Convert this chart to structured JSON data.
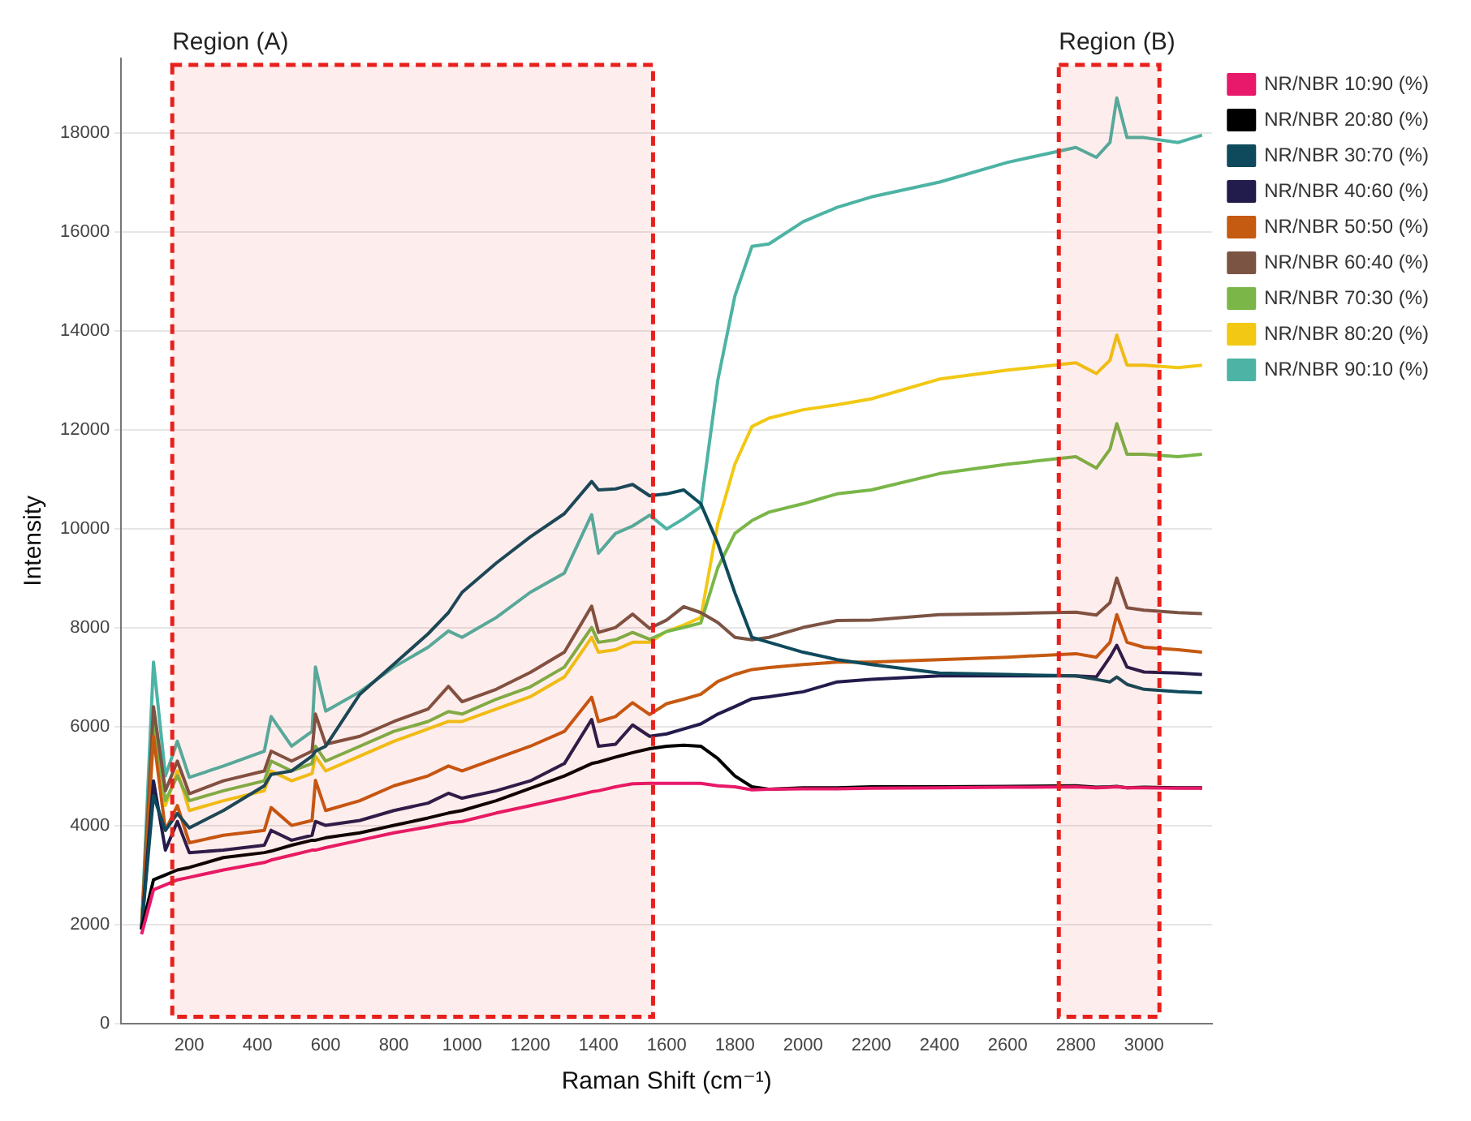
{
  "chart_data": {
    "type": "line",
    "xlabel": "Raman Shift (cm⁻¹)",
    "ylabel": "Intensity",
    "x": [
      60,
      95,
      130,
      165,
      200,
      300,
      420,
      440,
      500,
      560,
      570,
      600,
      700,
      800,
      900,
      960,
      1000,
      1100,
      1200,
      1300,
      1380,
      1400,
      1450,
      1500,
      1550,
      1600,
      1650,
      1700,
      1750,
      1800,
      1850,
      1900,
      2000,
      2100,
      2200,
      2400,
      2600,
      2800,
      2860,
      2900,
      2920,
      2950,
      3000,
      3100,
      3170
    ],
    "series": [
      {
        "name": "NR/NBR 10:90 (%)",
        "color": "#e8196a",
        "values": [
          1800,
          2700,
          2800,
          2900,
          2950,
          3100,
          3250,
          3300,
          3400,
          3500,
          3500,
          3550,
          3700,
          3850,
          3970,
          4050,
          4080,
          4250,
          4400,
          4550,
          4680,
          4700,
          4780,
          4840,
          4850,
          4850,
          4850,
          4850,
          4800,
          4780,
          4720,
          4730,
          4740,
          4740,
          4750,
          4760,
          4770,
          4780,
          4760,
          4770,
          4780,
          4760,
          4760,
          4750,
          4750
        ]
      },
      {
        "name": "NR/NBR 20:80 (%)",
        "color": "#000000",
        "values": [
          1900,
          2900,
          3000,
          3100,
          3150,
          3350,
          3450,
          3480,
          3600,
          3700,
          3700,
          3750,
          3850,
          4000,
          4150,
          4250,
          4300,
          4500,
          4750,
          5000,
          5250,
          5280,
          5380,
          5470,
          5550,
          5600,
          5620,
          5600,
          5350,
          5000,
          4780,
          4730,
          4760,
          4760,
          4780,
          4780,
          4790,
          4800,
          4770,
          4780,
          4790,
          4760,
          4770,
          4760,
          4760
        ]
      },
      {
        "name": "NR/NBR 30:70 (%)",
        "color": "#0e4a5c",
        "values": [
          1900,
          4600,
          3900,
          4240,
          3950,
          4300,
          4800,
          5030,
          5100,
          5400,
          5500,
          5600,
          6650,
          7260,
          7870,
          8300,
          8710,
          9300,
          9830,
          10300,
          10950,
          10780,
          10800,
          10890,
          10660,
          10700,
          10780,
          10500,
          9700,
          8700,
          7800,
          7700,
          7500,
          7350,
          7250,
          7080,
          7050,
          7020,
          6950,
          6900,
          7000,
          6850,
          6750,
          6700,
          6680
        ]
      },
      {
        "name": "NR/NBR 40:60 (%)",
        "color": "#221c4d",
        "values": [
          1900,
          4900,
          3500,
          4080,
          3450,
          3500,
          3600,
          3900,
          3700,
          3800,
          4080,
          4000,
          4100,
          4300,
          4450,
          4650,
          4550,
          4700,
          4900,
          5250,
          6140,
          5600,
          5640,
          6030,
          5800,
          5850,
          5950,
          6050,
          6250,
          6400,
          6560,
          6600,
          6700,
          6900,
          6950,
          7020,
          7020,
          7020,
          7000,
          7400,
          7640,
          7200,
          7100,
          7080,
          7050
        ]
      },
      {
        "name": "NR/NBR 50:50 (%)",
        "color": "#c55a11",
        "values": [
          1900,
          5800,
          3900,
          4400,
          3650,
          3800,
          3900,
          4360,
          4000,
          4100,
          4910,
          4300,
          4500,
          4800,
          5000,
          5200,
          5100,
          5350,
          5600,
          5900,
          6590,
          6100,
          6200,
          6480,
          6240,
          6460,
          6550,
          6650,
          6910,
          7050,
          7150,
          7190,
          7250,
          7300,
          7300,
          7350,
          7400,
          7470,
          7400,
          7700,
          8260,
          7700,
          7600,
          7550,
          7500
        ]
      },
      {
        "name": "NR/NBR 60:40 (%)",
        "color": "#7b5444",
        "values": [
          1900,
          6400,
          4700,
          5300,
          4640,
          4900,
          5100,
          5500,
          5300,
          5500,
          6250,
          5640,
          5800,
          6100,
          6350,
          6810,
          6500,
          6750,
          7090,
          7500,
          8430,
          7900,
          8000,
          8270,
          7980,
          8150,
          8420,
          8300,
          8100,
          7800,
          7750,
          7800,
          8000,
          8140,
          8150,
          8260,
          8280,
          8310,
          8250,
          8500,
          9000,
          8400,
          8350,
          8300,
          8280
        ]
      },
      {
        "name": "NR/NBR 70:30 (%)",
        "color": "#7ab648",
        "values": [
          1900,
          6100,
          4500,
          5000,
          4500,
          4700,
          4900,
          5300,
          5100,
          5250,
          5600,
          5300,
          5600,
          5900,
          6100,
          6300,
          6250,
          6550,
          6800,
          7200,
          8000,
          7700,
          7750,
          7900,
          7760,
          7920,
          8000,
          8090,
          9210,
          9900,
          10160,
          10330,
          10500,
          10700,
          10780,
          11110,
          11300,
          11450,
          11220,
          11600,
          12120,
          11500,
          11500,
          11450,
          11500
        ]
      },
      {
        "name": "NR/NBR 80:20 (%)",
        "color": "#f2c814",
        "values": [
          1900,
          6300,
          4400,
          5100,
          4300,
          4500,
          4700,
          5100,
          4900,
          5050,
          5400,
          5100,
          5400,
          5700,
          5950,
          6100,
          6100,
          6350,
          6600,
          7000,
          7800,
          7500,
          7550,
          7700,
          7700,
          7920,
          8050,
          8200,
          10100,
          11300,
          12060,
          12230,
          12400,
          12500,
          12620,
          13020,
          13200,
          13350,
          13130,
          13400,
          13910,
          13300,
          13300,
          13250,
          13300
        ]
      },
      {
        "name": "NR/NBR 90:10 (%)",
        "color": "#4db3a4",
        "values": [
          1900,
          7300,
          5000,
          5700,
          4970,
          5200,
          5500,
          6200,
          5600,
          5900,
          7200,
          6310,
          6700,
          7200,
          7600,
          7930,
          7800,
          8200,
          8710,
          9100,
          10280,
          9500,
          9900,
          10050,
          10270,
          9990,
          10200,
          10440,
          13000,
          14700,
          15700,
          15750,
          16200,
          16490,
          16700,
          17000,
          17400,
          17700,
          17500,
          17800,
          18700,
          17900,
          17900,
          17800,
          17950
        ]
      }
    ],
    "xlim": [
      0,
      3200
    ],
    "xticks": [
      200,
      400,
      600,
      800,
      1000,
      1200,
      1400,
      1600,
      1800,
      2000,
      2200,
      2400,
      2600,
      2800,
      3000
    ],
    "ylim": [
      0,
      19500
    ],
    "yticks": [
      0,
      2000,
      4000,
      6000,
      8000,
      10000,
      12000,
      14000,
      16000,
      18000
    ],
    "grid": "y",
    "legend": "top right",
    "marker": "none",
    "line_style": "solid",
    "bands": [
      {
        "axis": "x",
        "from": 150,
        "to": 1560,
        "label": "Region (A)",
        "color": "#e8201c"
      },
      {
        "axis": "x",
        "from": 2750,
        "to": 3045,
        "label": "Region (B)",
        "color": "#e8201c"
      }
    ]
  }
}
